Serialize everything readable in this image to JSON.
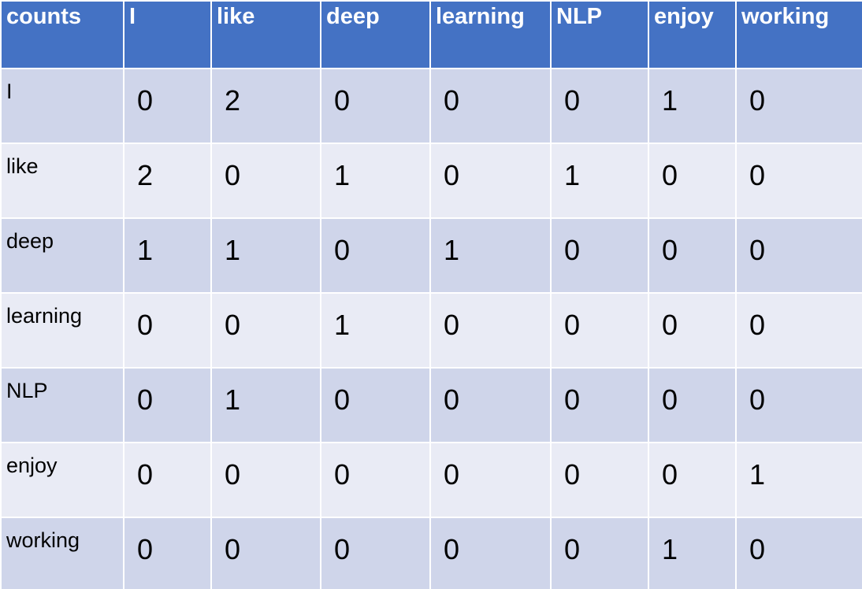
{
  "table": {
    "headers": [
      "counts",
      "I",
      "like",
      "deep",
      "learning",
      "NLP",
      "enjoy",
      "working"
    ],
    "rows": [
      {
        "label": "I",
        "values": [
          "0",
          "2",
          "0",
          "0",
          "0",
          "1",
          "0"
        ]
      },
      {
        "label": "like",
        "values": [
          "2",
          "0",
          "1",
          "0",
          "1",
          "0",
          "0"
        ]
      },
      {
        "label": "deep",
        "values": [
          "1",
          "1",
          "0",
          "1",
          "0",
          "0",
          "0"
        ]
      },
      {
        "label": "learning",
        "values": [
          "0",
          "0",
          "1",
          "0",
          "0",
          "0",
          "0"
        ]
      },
      {
        "label": "NLP",
        "values": [
          "0",
          "1",
          "0",
          "0",
          "0",
          "0",
          "0"
        ]
      },
      {
        "label": "enjoy",
        "values": [
          "0",
          "0",
          "0",
          "0",
          "0",
          "0",
          "1"
        ]
      },
      {
        "label": "working",
        "values": [
          "0",
          "0",
          "0",
          "0",
          "0",
          "1",
          "0"
        ]
      }
    ]
  },
  "colors": {
    "header": "#4472C4",
    "row_dark": "#CFD5EA",
    "row_light": "#E9EBF5",
    "border": "#FFFFFF"
  }
}
